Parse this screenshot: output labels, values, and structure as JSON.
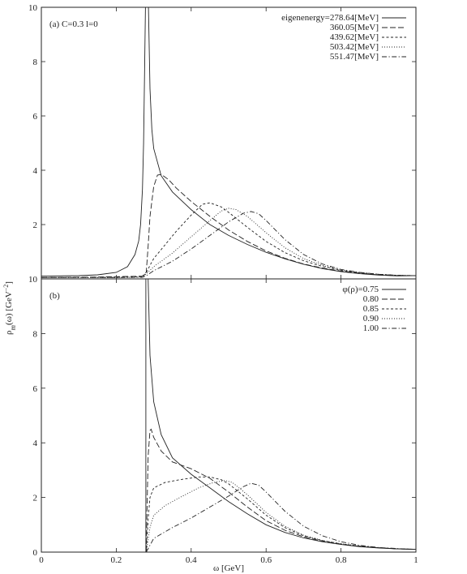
{
  "figure": {
    "shared_xlabel": "ω [GeV]",
    "shared_ylabel_main": "ρ",
    "shared_ylabel_sub": "m",
    "shared_ylabel_rest": "(ω) [GeV",
    "shared_ylabel_exp": "−2",
    "shared_ylabel_close": "]"
  },
  "chart_data": [
    {
      "type": "line",
      "panel_label": "(a)",
      "annotation": "C=0.3 l=0",
      "xlim": [
        0,
        1
      ],
      "ylim": [
        0,
        10
      ],
      "x_ticks": [
        "0",
        "0.2",
        "0.4",
        "0.6",
        "0.8",
        "1"
      ],
      "y_ticks": [
        {
          "v": 0,
          "label": ""
        },
        {
          "v": 2,
          "label": "2"
        },
        {
          "v": 4,
          "label": "4"
        },
        {
          "v": 6,
          "label": "6"
        },
        {
          "v": 8,
          "label": "8"
        },
        {
          "v": 10,
          "label": "10"
        }
      ],
      "grid": false,
      "legend_position": "top-right",
      "legend_title": "",
      "series": [
        {
          "name": "eigenenergy=278.64[MeV]",
          "dash": "solid",
          "points": [
            [
              0,
              0.1
            ],
            [
              0.1,
              0.12
            ],
            [
              0.15,
              0.15
            ],
            [
              0.2,
              0.24
            ],
            [
              0.23,
              0.45
            ],
            [
              0.25,
              0.9
            ],
            [
              0.26,
              1.4
            ],
            [
              0.265,
              2.0
            ],
            [
              0.27,
              3.3
            ],
            [
              0.273,
              5.0
            ],
            [
              0.276,
              8.0
            ],
            [
              0.278,
              10
            ],
            [
              0.286,
              10
            ],
            [
              0.29,
              7.0
            ],
            [
              0.295,
              5.5
            ],
            [
              0.3,
              4.8
            ],
            [
              0.32,
              3.8
            ],
            [
              0.35,
              3.2
            ],
            [
              0.4,
              2.55
            ],
            [
              0.45,
              2.0
            ],
            [
              0.5,
              1.6
            ],
            [
              0.55,
              1.27
            ],
            [
              0.6,
              0.98
            ],
            [
              0.65,
              0.74
            ],
            [
              0.7,
              0.54
            ],
            [
              0.75,
              0.38
            ],
            [
              0.8,
              0.27
            ],
            [
              0.85,
              0.19
            ],
            [
              0.9,
              0.14
            ],
            [
              0.95,
              0.11
            ],
            [
              1.0,
              0.12
            ]
          ]
        },
        {
          "name": "360.05[MeV]",
          "dash": "dash",
          "points": [
            [
              0,
              0.05
            ],
            [
              0.1,
              0.06
            ],
            [
              0.2,
              0.08
            ],
            [
              0.27,
              0.1
            ],
            [
              0.28,
              0.25
            ],
            [
              0.285,
              1.2
            ],
            [
              0.29,
              2.3
            ],
            [
              0.3,
              3.4
            ],
            [
              0.31,
              3.82
            ],
            [
              0.32,
              3.85
            ],
            [
              0.34,
              3.65
            ],
            [
              0.36,
              3.35
            ],
            [
              0.4,
              2.85
            ],
            [
              0.45,
              2.3
            ],
            [
              0.5,
              1.8
            ],
            [
              0.55,
              1.38
            ],
            [
              0.6,
              1.03
            ],
            [
              0.65,
              0.76
            ],
            [
              0.7,
              0.55
            ],
            [
              0.75,
              0.4
            ],
            [
              0.8,
              0.29
            ],
            [
              0.85,
              0.21
            ],
            [
              0.9,
              0.15
            ],
            [
              0.95,
              0.12
            ],
            [
              1.0,
              0.12
            ]
          ]
        },
        {
          "name": "439.62[MeV]",
          "dash": "short-dash",
          "points": [
            [
              0,
              0.05
            ],
            [
              0.2,
              0.06
            ],
            [
              0.27,
              0.08
            ],
            [
              0.28,
              0.22
            ],
            [
              0.29,
              0.5
            ],
            [
              0.3,
              0.75
            ],
            [
              0.33,
              1.25
            ],
            [
              0.36,
              1.75
            ],
            [
              0.4,
              2.35
            ],
            [
              0.43,
              2.75
            ],
            [
              0.45,
              2.8
            ],
            [
              0.48,
              2.65
            ],
            [
              0.5,
              2.45
            ],
            [
              0.55,
              1.9
            ],
            [
              0.6,
              1.38
            ],
            [
              0.65,
              0.97
            ],
            [
              0.7,
              0.67
            ],
            [
              0.75,
              0.46
            ],
            [
              0.8,
              0.32
            ],
            [
              0.85,
              0.23
            ],
            [
              0.9,
              0.17
            ],
            [
              0.95,
              0.13
            ],
            [
              1.0,
              0.12
            ]
          ]
        },
        {
          "name": "503.42[MeV]",
          "dash": "dot",
          "points": [
            [
              0,
              0.05
            ],
            [
              0.2,
              0.05
            ],
            [
              0.27,
              0.07
            ],
            [
              0.28,
              0.18
            ],
            [
              0.3,
              0.45
            ],
            [
              0.35,
              0.95
            ],
            [
              0.4,
              1.55
            ],
            [
              0.45,
              2.15
            ],
            [
              0.48,
              2.5
            ],
            [
              0.5,
              2.6
            ],
            [
              0.52,
              2.55
            ],
            [
              0.55,
              2.3
            ],
            [
              0.6,
              1.7
            ],
            [
              0.65,
              1.15
            ],
            [
              0.7,
              0.75
            ],
            [
              0.75,
              0.5
            ],
            [
              0.8,
              0.33
            ],
            [
              0.85,
              0.23
            ],
            [
              0.9,
              0.17
            ],
            [
              0.95,
              0.13
            ],
            [
              1.0,
              0.12
            ]
          ]
        },
        {
          "name": "551.47[MeV]",
          "dash": "dash-dot",
          "points": [
            [
              0,
              0.05
            ],
            [
              0.2,
              0.05
            ],
            [
              0.27,
              0.06
            ],
            [
              0.28,
              0.12
            ],
            [
              0.3,
              0.3
            ],
            [
              0.35,
              0.65
            ],
            [
              0.4,
              1.1
            ],
            [
              0.45,
              1.6
            ],
            [
              0.5,
              2.1
            ],
            [
              0.54,
              2.42
            ],
            [
              0.56,
              2.48
            ],
            [
              0.58,
              2.4
            ],
            [
              0.6,
              2.15
            ],
            [
              0.65,
              1.45
            ],
            [
              0.7,
              0.9
            ],
            [
              0.75,
              0.55
            ],
            [
              0.8,
              0.35
            ],
            [
              0.85,
              0.24
            ],
            [
              0.9,
              0.17
            ],
            [
              0.95,
              0.13
            ],
            [
              1.0,
              0.12
            ]
          ]
        }
      ]
    },
    {
      "type": "line",
      "panel_label": "(b)",
      "annotation": "",
      "xlim": [
        0,
        1
      ],
      "ylim": [
        0,
        10
      ],
      "x_ticks": [
        "0",
        "0.2",
        "0.4",
        "0.6",
        "0.8",
        "1"
      ],
      "y_ticks": [
        {
          "v": 0,
          "label": "0"
        },
        {
          "v": 2,
          "label": "2"
        },
        {
          "v": 4,
          "label": "4"
        },
        {
          "v": 6,
          "label": "6"
        },
        {
          "v": 8,
          "label": "8"
        },
        {
          "v": 10,
          "label": "10"
        }
      ],
      "grid": false,
      "legend_position": "top-right",
      "legend_title": "φ(ρ)=",
      "series": [
        {
          "name": "0.75",
          "dash": "solid",
          "points": [
            [
              0.279,
              0
            ],
            [
              0.279,
              10
            ],
            [
              0.285,
              10
            ],
            [
              0.29,
              7.2
            ],
            [
              0.3,
              5.5
            ],
            [
              0.32,
              4.3
            ],
            [
              0.35,
              3.45
            ],
            [
              0.4,
              2.85
            ],
            [
              0.45,
              2.35
            ],
            [
              0.5,
              1.85
            ],
            [
              0.55,
              1.4
            ],
            [
              0.6,
              1.0
            ],
            [
              0.65,
              0.72
            ],
            [
              0.7,
              0.52
            ],
            [
              0.75,
              0.38
            ],
            [
              0.8,
              0.28
            ],
            [
              0.85,
              0.2
            ],
            [
              0.9,
              0.15
            ],
            [
              0.95,
              0.12
            ],
            [
              1.0,
              0.1
            ]
          ]
        },
        {
          "name": "0.80",
          "dash": "dash",
          "points": [
            [
              0.28,
              0
            ],
            [
              0.282,
              1.5
            ],
            [
              0.285,
              3.5
            ],
            [
              0.29,
              4.45
            ],
            [
              0.293,
              4.5
            ],
            [
              0.3,
              4.2
            ],
            [
              0.32,
              3.7
            ],
            [
              0.35,
              3.3
            ],
            [
              0.4,
              3.05
            ],
            [
              0.45,
              2.7
            ],
            [
              0.5,
              2.2
            ],
            [
              0.55,
              1.65
            ],
            [
              0.6,
              1.15
            ],
            [
              0.65,
              0.8
            ],
            [
              0.7,
              0.56
            ],
            [
              0.75,
              0.4
            ],
            [
              0.8,
              0.29
            ],
            [
              0.85,
              0.21
            ],
            [
              0.9,
              0.16
            ],
            [
              0.95,
              0.12
            ],
            [
              1.0,
              0.1
            ]
          ]
        },
        {
          "name": "0.85",
          "dash": "short-dash",
          "points": [
            [
              0.28,
              0
            ],
            [
              0.285,
              1.2
            ],
            [
              0.29,
              2.0
            ],
            [
              0.3,
              2.35
            ],
            [
              0.33,
              2.55
            ],
            [
              0.37,
              2.65
            ],
            [
              0.42,
              2.75
            ],
            [
              0.45,
              2.75
            ],
            [
              0.48,
              2.65
            ],
            [
              0.5,
              2.5
            ],
            [
              0.55,
              1.95
            ],
            [
              0.6,
              1.35
            ],
            [
              0.65,
              0.9
            ],
            [
              0.7,
              0.6
            ],
            [
              0.75,
              0.42
            ],
            [
              0.8,
              0.3
            ],
            [
              0.85,
              0.22
            ],
            [
              0.9,
              0.16
            ],
            [
              0.95,
              0.12
            ],
            [
              1.0,
              0.1
            ]
          ]
        },
        {
          "name": "0.90",
          "dash": "dot",
          "points": [
            [
              0.28,
              0
            ],
            [
              0.29,
              0.9
            ],
            [
              0.3,
              1.35
            ],
            [
              0.33,
              1.7
            ],
            [
              0.37,
              2.0
            ],
            [
              0.42,
              2.35
            ],
            [
              0.46,
              2.55
            ],
            [
              0.49,
              2.62
            ],
            [
              0.51,
              2.55
            ],
            [
              0.55,
              2.1
            ],
            [
              0.6,
              1.45
            ],
            [
              0.65,
              0.95
            ],
            [
              0.7,
              0.62
            ],
            [
              0.75,
              0.43
            ],
            [
              0.8,
              0.31
            ],
            [
              0.85,
              0.22
            ],
            [
              0.9,
              0.16
            ],
            [
              0.95,
              0.12
            ],
            [
              1.0,
              0.1
            ]
          ]
        },
        {
          "name": "1.00",
          "dash": "dash-dot",
          "points": [
            [
              0.28,
              0
            ],
            [
              0.3,
              0.5
            ],
            [
              0.35,
              0.9
            ],
            [
              0.4,
              1.25
            ],
            [
              0.45,
              1.65
            ],
            [
              0.5,
              2.05
            ],
            [
              0.54,
              2.4
            ],
            [
              0.56,
              2.52
            ],
            [
              0.58,
              2.45
            ],
            [
              0.6,
              2.2
            ],
            [
              0.65,
              1.5
            ],
            [
              0.7,
              0.95
            ],
            [
              0.75,
              0.6
            ],
            [
              0.8,
              0.38
            ],
            [
              0.85,
              0.25
            ],
            [
              0.9,
              0.17
            ],
            [
              0.95,
              0.13
            ],
            [
              1.0,
              0.1
            ]
          ]
        }
      ]
    }
  ]
}
